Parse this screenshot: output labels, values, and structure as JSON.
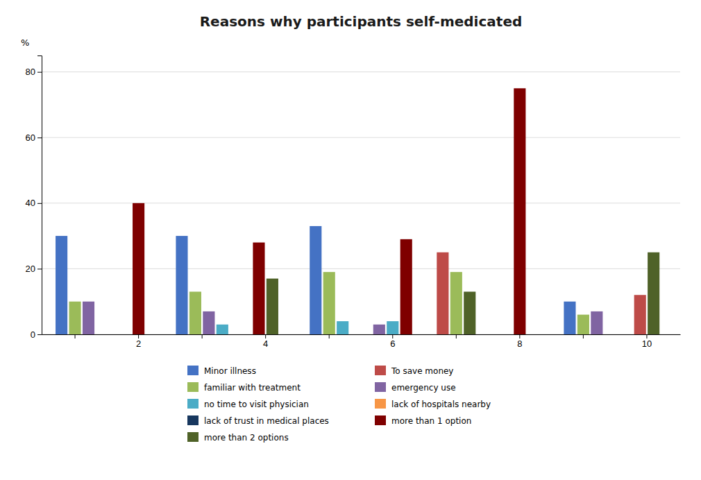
{
  "chart_data": {
    "type": "bar",
    "title": "Reasons why participants self-medicated",
    "ylabel": "%",
    "categories": [
      null,
      "2",
      null,
      "4",
      null,
      "6",
      null,
      "8",
      null,
      "10"
    ],
    "series": [
      {
        "name": "Minor illness",
        "color": "#4472C4",
        "values": [
          30,
          0,
          30,
          0,
          33,
          0,
          0,
          0,
          10,
          0
        ]
      },
      {
        "name": "To save money",
        "color": "#BE4B48",
        "values": [
          0,
          0,
          0,
          0,
          0,
          0,
          25,
          0,
          0,
          12
        ]
      },
      {
        "name": "familiar with treatment",
        "color": "#9BBB59",
        "values": [
          10,
          0,
          13,
          0,
          19,
          0,
          19,
          0,
          6,
          0
        ]
      },
      {
        "name": "emergency use",
        "color": "#8064A2",
        "values": [
          10,
          0,
          7,
          0,
          0,
          3,
          0,
          0,
          7,
          0
        ]
      },
      {
        "name": "no time to visit physician",
        "color": "#4BACC6",
        "values": [
          0,
          0,
          3,
          0,
          4,
          4,
          0,
          0,
          0,
          0
        ]
      },
      {
        "name": "lack of hospitals nearby",
        "color": "#F79646",
        "values": [
          0,
          0,
          0,
          0,
          0,
          0,
          0,
          0,
          0,
          0
        ]
      },
      {
        "name": "lack of trust in medical places",
        "color": "#17375E",
        "values": [
          0,
          0,
          0,
          0,
          0,
          0,
          0,
          0,
          0,
          0
        ]
      },
      {
        "name": "more than 1 option",
        "color": "#7F0000",
        "values": [
          0,
          40,
          0,
          28,
          0,
          29,
          0,
          75,
          0,
          0
        ]
      },
      {
        "name": "more than 2 options",
        "color": "#4F6228",
        "values": [
          0,
          0,
          0,
          17,
          0,
          0,
          13,
          0,
          0,
          25
        ]
      }
    ],
    "ylim": [
      0,
      85
    ],
    "yticks": [
      0,
      20,
      40,
      60,
      80
    ],
    "grid": true,
    "legend": "bottom"
  }
}
